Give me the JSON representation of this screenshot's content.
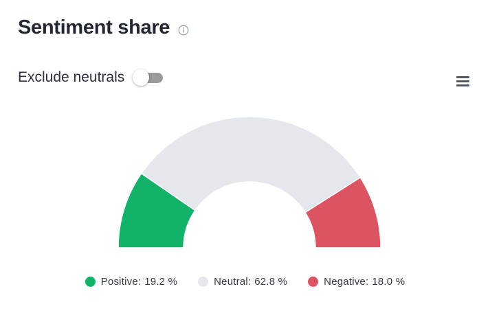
{
  "header": {
    "title": "Sentiment share",
    "info_icon": "info-circle-icon"
  },
  "controls": {
    "toggle_label": "Exclude neutrals",
    "toggle_on": false,
    "menu_icon": "hamburger-menu-icon"
  },
  "chart_data": {
    "type": "pie",
    "variant": "semi-donut",
    "title": "",
    "series": [
      {
        "name": "Positive",
        "value": 19.2,
        "display": "19.2 %",
        "color": "#13b26b"
      },
      {
        "name": "Neutral",
        "value": 62.8,
        "display": "62.8 %",
        "color": "#e4e7eb"
      },
      {
        "name": "Negative",
        "value": 18.0,
        "display": "18.0 %",
        "color": "#dc5461"
      }
    ],
    "legend_position": "bottom-center"
  }
}
